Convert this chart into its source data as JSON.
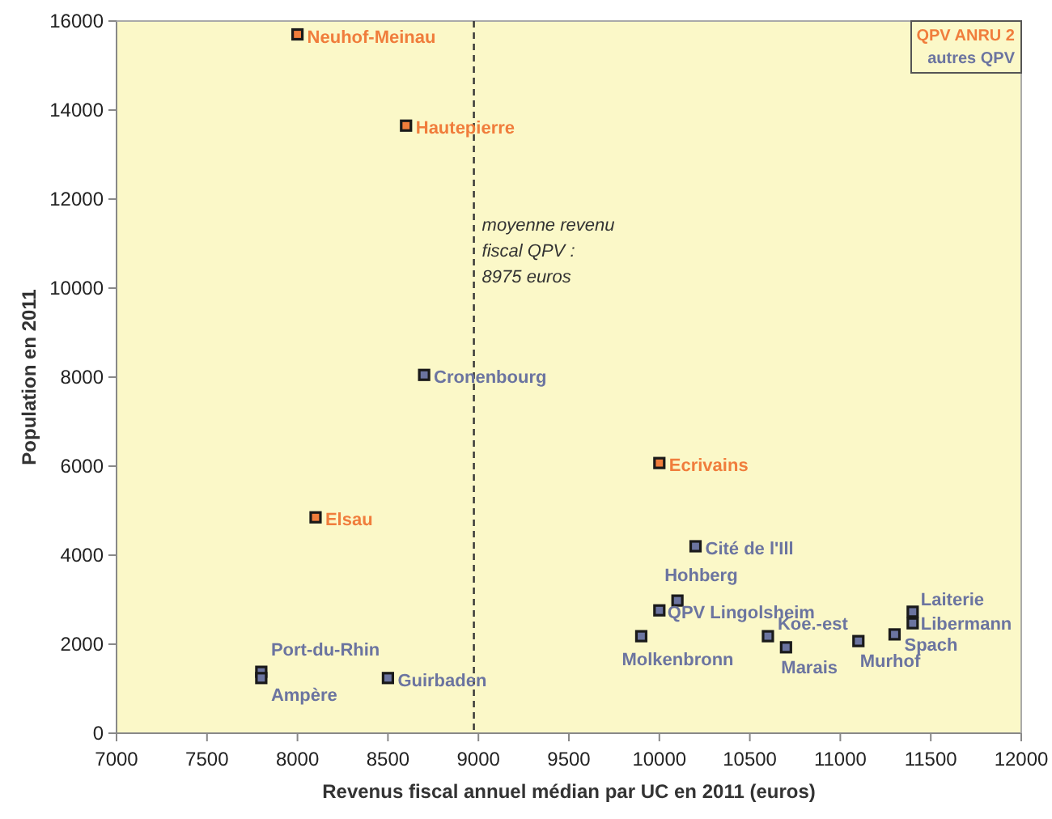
{
  "chart_data": {
    "type": "scatter",
    "xlabel": "Revenus fiscal annuel médian par UC en 2011 (euros)",
    "ylabel": "Population en 2011",
    "xlim": [
      7000,
      12000
    ],
    "xticks": [
      7000,
      7500,
      8000,
      8500,
      9000,
      9500,
      10000,
      10500,
      11000,
      11500,
      12000
    ],
    "ylim": [
      0,
      16000
    ],
    "yticks": [
      0,
      2000,
      4000,
      6000,
      8000,
      10000,
      12000,
      14000,
      16000
    ],
    "legend": "top right",
    "marker": "square",
    "grid": false,
    "ref_lines": [
      {
        "axis": "x",
        "value": 8975,
        "label": "moyenne revenu fiscal QPV : 8975 euros",
        "line_style": "dashed",
        "color": "#333333"
      }
    ],
    "series": [
      {
        "name": "QPV ANRU 2",
        "color": "#f07d3c",
        "x": [
          8000,
          8600,
          8100,
          10000
        ],
        "values": [
          15700,
          13650,
          4850,
          6070
        ],
        "value_labels": [
          "Neuhof-Meinau",
          "Hautepierre",
          "Elsau",
          "Ecrivains"
        ]
      },
      {
        "name": "autres QPV",
        "color": "#6b74a0",
        "x": [
          8700,
          10200,
          10100,
          10000,
          9900,
          10600,
          10700,
          11100,
          11300,
          11400,
          11400,
          7800,
          7800,
          8500
        ],
        "values": [
          8050,
          4200,
          2980,
          2760,
          2180,
          2180,
          1930,
          2070,
          2220,
          2730,
          2470,
          1380,
          1240,
          1240
        ],
        "value_labels": [
          "Cronenbourg",
          "Cité de l'Ill",
          "Hohberg",
          "QPV Lingolsheim",
          "Molkenbronn",
          "Koe.-est",
          "Marais",
          "Murhof",
          "Spach",
          "Laiterie",
          "Libermann",
          "Port-du-Rhin",
          "Ampère",
          "Guirbaden"
        ]
      }
    ]
  }
}
